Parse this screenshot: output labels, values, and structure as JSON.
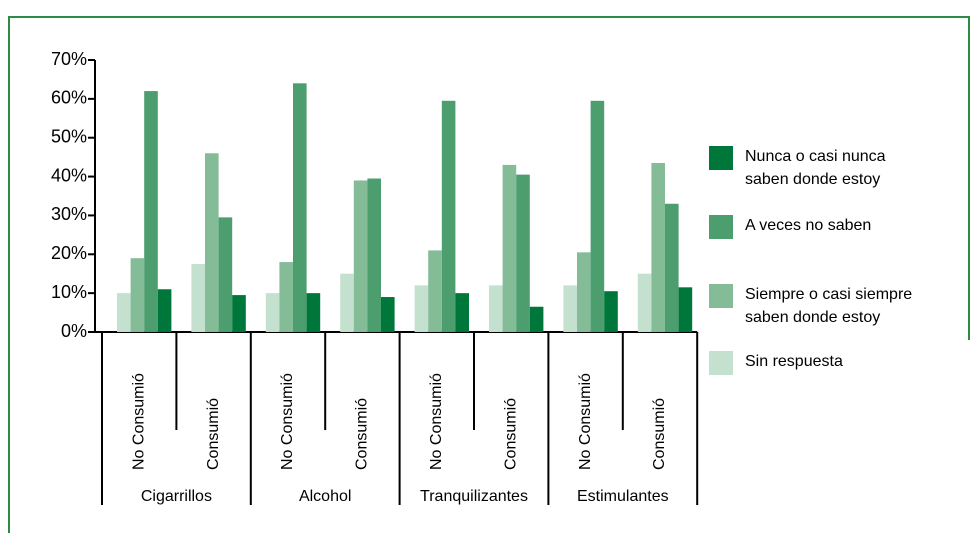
{
  "chart_data": {
    "type": "bar",
    "groups": [
      {
        "name": "Cigarrillos",
        "categories": [
          "No Consumió",
          "Consumió"
        ]
      },
      {
        "name": "Alcohol",
        "categories": [
          "No Consumió",
          "Consumió"
        ]
      },
      {
        "name": "Tranquilizantes",
        "categories": [
          "No Consumió",
          "Consumió"
        ]
      },
      {
        "name": "Estimulantes",
        "categories": [
          "No Consumió",
          "Consumió"
        ]
      }
    ],
    "series": [
      {
        "name": "Sin respuesta",
        "color": "#c4e1cf",
        "values": [
          10,
          17.5,
          10,
          15,
          12,
          12,
          12,
          15
        ]
      },
      {
        "name": "Siempre o casi siempre\nsaben donde estoy",
        "color": "#84bc98",
        "values": [
          19,
          46,
          18,
          39,
          21,
          43,
          20.5,
          43.5
        ]
      },
      {
        "name": "A veces no saben",
        "color": "#4c9e6f",
        "values": [
          62,
          29.5,
          64,
          39.5,
          59.5,
          40.5,
          59.5,
          33
        ]
      },
      {
        "name": "Nunca o casi nunca\nsaben donde estoy",
        "color": "#00773a",
        "values": [
          11,
          9.5,
          10,
          9,
          10,
          6.5,
          10.5,
          11.5
        ]
      }
    ],
    "legend_order": [
      3,
      2,
      1,
      0
    ],
    "ylim": [
      0,
      70
    ],
    "yticks": [
      {
        "value": 0,
        "label": "0%"
      },
      {
        "value": 10,
        "label": "10%"
      },
      {
        "value": 20,
        "label": "20%"
      },
      {
        "value": 30,
        "label": "30%"
      },
      {
        "value": 40,
        "label": "40%"
      },
      {
        "value": 50,
        "label": "50%"
      },
      {
        "value": 60,
        "label": "60%"
      },
      {
        "value": 70,
        "label": "70%"
      }
    ]
  }
}
